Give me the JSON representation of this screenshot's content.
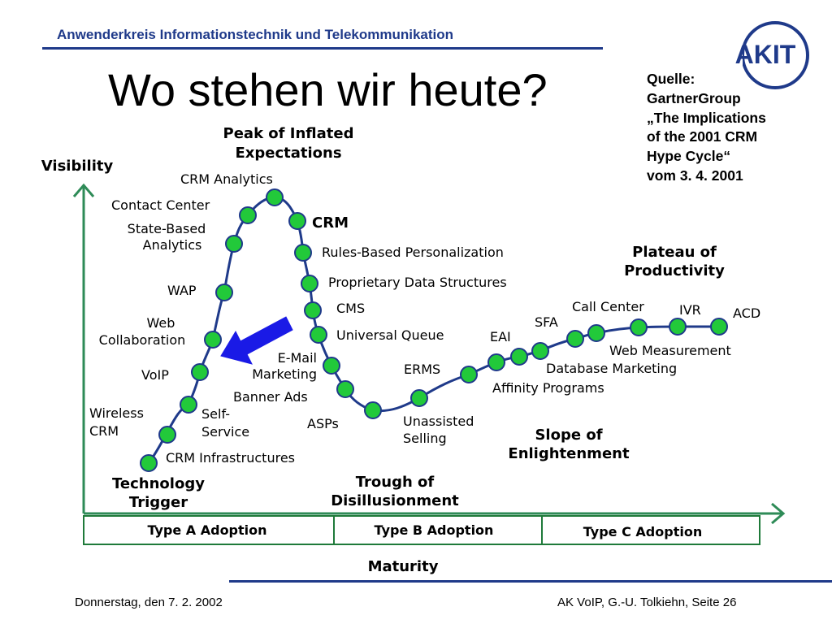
{
  "header": {
    "title": "Anwenderkreis  Informationstechnik und Telekommunikation",
    "logo_text": "AKIT"
  },
  "slide": {
    "title": "Wo stehen wir heute?"
  },
  "source": {
    "lines": [
      "Quelle:",
      "GartnerGroup",
      "„The Implications",
      "of the 2001 CRM",
      "Hype Cycle“",
      "vom 3. 4. 2001"
    ]
  },
  "diagram": {
    "y_axis_label": "Visibility",
    "x_axis_label": "Maturity",
    "phases": {
      "technology_trigger": [
        "Technology",
        "Trigger"
      ],
      "peak": [
        "Peak of Inflated",
        "Expectations"
      ],
      "trough": [
        "Trough of",
        "Disillusionment"
      ],
      "slope": [
        "Slope of",
        "Enlightenment"
      ],
      "plateau": [
        "Plateau of",
        "Productivity"
      ]
    },
    "adoption": [
      "Type A Adoption",
      "Type B Adoption",
      "Type C Adoption"
    ],
    "technologies": {
      "crm_infrastructures": [
        "CRM Infrastructures"
      ],
      "wireless_crm": [
        "Wireless",
        "CRM"
      ],
      "self_service": [
        "Self-",
        "Service"
      ],
      "voip": [
        "VoIP"
      ],
      "web_collaboration": [
        "Web",
        "Collaboration"
      ],
      "wap": [
        "WAP"
      ],
      "state_based_analytics": [
        "State-Based",
        "Analytics"
      ],
      "contact_center": [
        "Contact Center"
      ],
      "crm_analytics": [
        "CRM Analytics"
      ],
      "crm": [
        "CRM"
      ],
      "rules_based": [
        "Rules-Based Personalization"
      ],
      "proprietary": [
        "Proprietary Data Structures"
      ],
      "cms": [
        "CMS"
      ],
      "universal_queue": [
        "Universal Queue"
      ],
      "email_marketing": [
        "E-Mail",
        "Marketing"
      ],
      "banner_ads": [
        "Banner Ads"
      ],
      "asps": [
        "ASPs"
      ],
      "unassisted_selling": [
        "Unassisted",
        "Selling"
      ],
      "erms": [
        "ERMS"
      ],
      "eai": [
        "EAI"
      ],
      "affinity_programs": [
        "Affinity Programs"
      ],
      "database_marketing": [
        "Database Marketing"
      ],
      "sfa": [
        "SFA"
      ],
      "call_center": [
        "Call Center"
      ],
      "web_measurement": [
        "Web Measurement"
      ],
      "ivr": [
        "IVR"
      ],
      "acd": [
        "ACD"
      ]
    },
    "colors": {
      "axis": "#2e8b57",
      "curve": "#1f3a8a",
      "node": "#22c93a",
      "arrow": "#1a1ae6",
      "adoption_border": "#1f7a3a"
    },
    "arrow_icon": "left-pointing-arrow-icon"
  },
  "footer": {
    "date": "Donnerstag, den 7. 2. 2002",
    "page": "AK VoIP, G.-U. Tolkiehn, Seite 26"
  }
}
